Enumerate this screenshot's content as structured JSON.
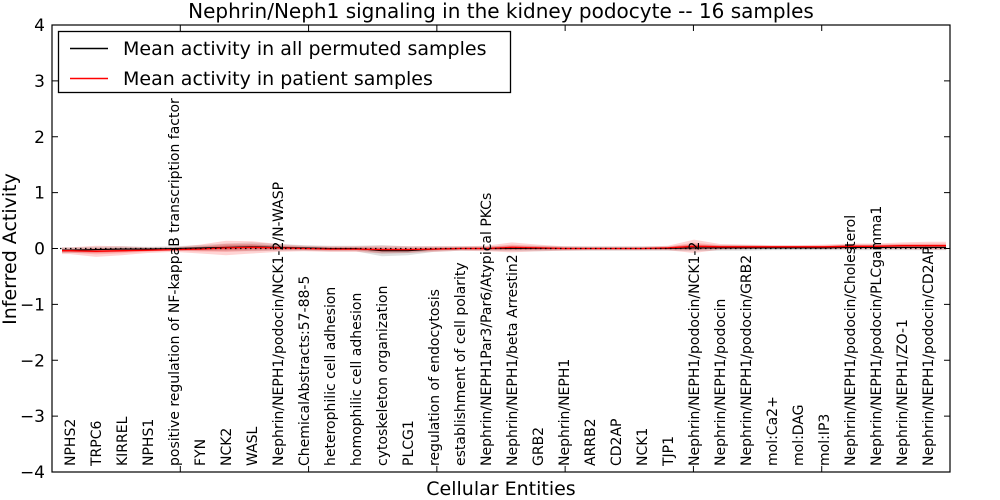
{
  "chart_data": {
    "type": "line",
    "title": "Nephrin/Neph1 signaling in the kidney podocyte -- 16 samples",
    "xlabel": "Cellular Entities",
    "ylabel": "Inferred Activity",
    "ylim": [
      -4,
      4
    ],
    "yticks": {
      "values": [
        4,
        3,
        2,
        1,
        0,
        -1,
        -2,
        -3,
        -4
      ],
      "labels": [
        "4",
        "3",
        "2",
        "1",
        "0",
        "−1",
        "−2",
        "−3",
        "−4"
      ]
    },
    "x_major_tick_step": 5,
    "grid": false,
    "legend_position": "upper left",
    "zero_reference_line": {
      "y": 0,
      "style": "dotted",
      "color": "#000000"
    },
    "categories": [
      "NPHS2",
      "TRPC6",
      "KIRREL",
      "NPHS1",
      "positive regulation of NF-kappaB transcription factor a",
      "FYN",
      "NCK2",
      "WASL",
      "Nephrin/NEPH1/podocin/NCK1-2/N-WASP",
      "ChemicalAbstracts:57-88-5",
      "heterophilic cell adhesion",
      "homophilic cell adhesion",
      "cytoskeleton organization",
      "PLCG1",
      "regulation of endocytosis",
      "establishment of cell polarity",
      "Nephrin/NEPH1Par3/Par6/Atypical PKCs",
      "Nephrin/NEPH1/beta Arrestin2",
      "GRB2",
      "Nephrin/NEPH1",
      "ARRB2",
      "CD2AP",
      "NCK1",
      "TJP1",
      "Nephrin/NEPH1/podocin/NCK1-2",
      "Nephrin/NEPH1/podocin",
      "Nephrin/NEPH1/podocin/GRB2",
      "mol:Ca2+",
      "mol:DAG",
      "mol:IP3",
      "Nephrin/NEPH1/podocin/Cholesterol",
      "Nephrin/NEPH1/podocin/PLCgamma1",
      "Nephrin/NEPH1/ZO-1",
      "Nephrin/NEPH1/podocin/CD2AP"
    ],
    "series": [
      {
        "name": "Mean activity in all permuted samples",
        "color": "#000000",
        "band_color": "rgba(0,0,0,0.12)",
        "mean": [
          -0.03,
          -0.02,
          -0.01,
          -0.01,
          0.0,
          0.01,
          0.02,
          0.03,
          0.02,
          0.01,
          0.0,
          0.0,
          -0.04,
          -0.04,
          -0.01,
          0.0,
          0.0,
          0.0,
          0.0,
          0.0,
          0.0,
          0.0,
          0.0,
          0.0,
          0.01,
          0.01,
          0.01,
          0.01,
          0.01,
          0.01,
          0.02,
          0.02,
          0.02,
          0.02
        ],
        "band_halfwidth": [
          0.05,
          0.05,
          0.05,
          0.04,
          0.04,
          0.05,
          0.07,
          0.08,
          0.06,
          0.05,
          0.05,
          0.05,
          0.1,
          0.08,
          0.05,
          0.04,
          0.04,
          0.05,
          0.05,
          0.04,
          0.04,
          0.04,
          0.04,
          0.04,
          0.06,
          0.05,
          0.05,
          0.04,
          0.04,
          0.04,
          0.05,
          0.05,
          0.05,
          0.05
        ]
      },
      {
        "name": "Mean activity in patient samples",
        "color": "#ff0000",
        "band_color": "rgba(255,0,0,0.17)",
        "mean": [
          -0.04,
          -0.05,
          -0.04,
          -0.03,
          -0.02,
          -0.01,
          0.01,
          0.02,
          0.01,
          0.0,
          -0.01,
          -0.01,
          -0.02,
          -0.02,
          -0.01,
          0.0,
          0.0,
          0.02,
          0.01,
          0.0,
          0.0,
          0.0,
          0.0,
          0.01,
          0.04,
          0.03,
          0.03,
          0.03,
          0.03,
          0.03,
          0.04,
          0.04,
          0.05,
          0.05
        ],
        "band_halfwidth": [
          0.06,
          0.1,
          0.08,
          0.05,
          0.04,
          0.08,
          0.13,
          0.11,
          0.07,
          0.05,
          0.05,
          0.05,
          0.07,
          0.06,
          0.05,
          0.04,
          0.05,
          0.09,
          0.06,
          0.04,
          0.03,
          0.03,
          0.03,
          0.04,
          0.12,
          0.05,
          0.04,
          0.03,
          0.03,
          0.04,
          0.05,
          0.05,
          0.06,
          0.07
        ]
      }
    ]
  }
}
